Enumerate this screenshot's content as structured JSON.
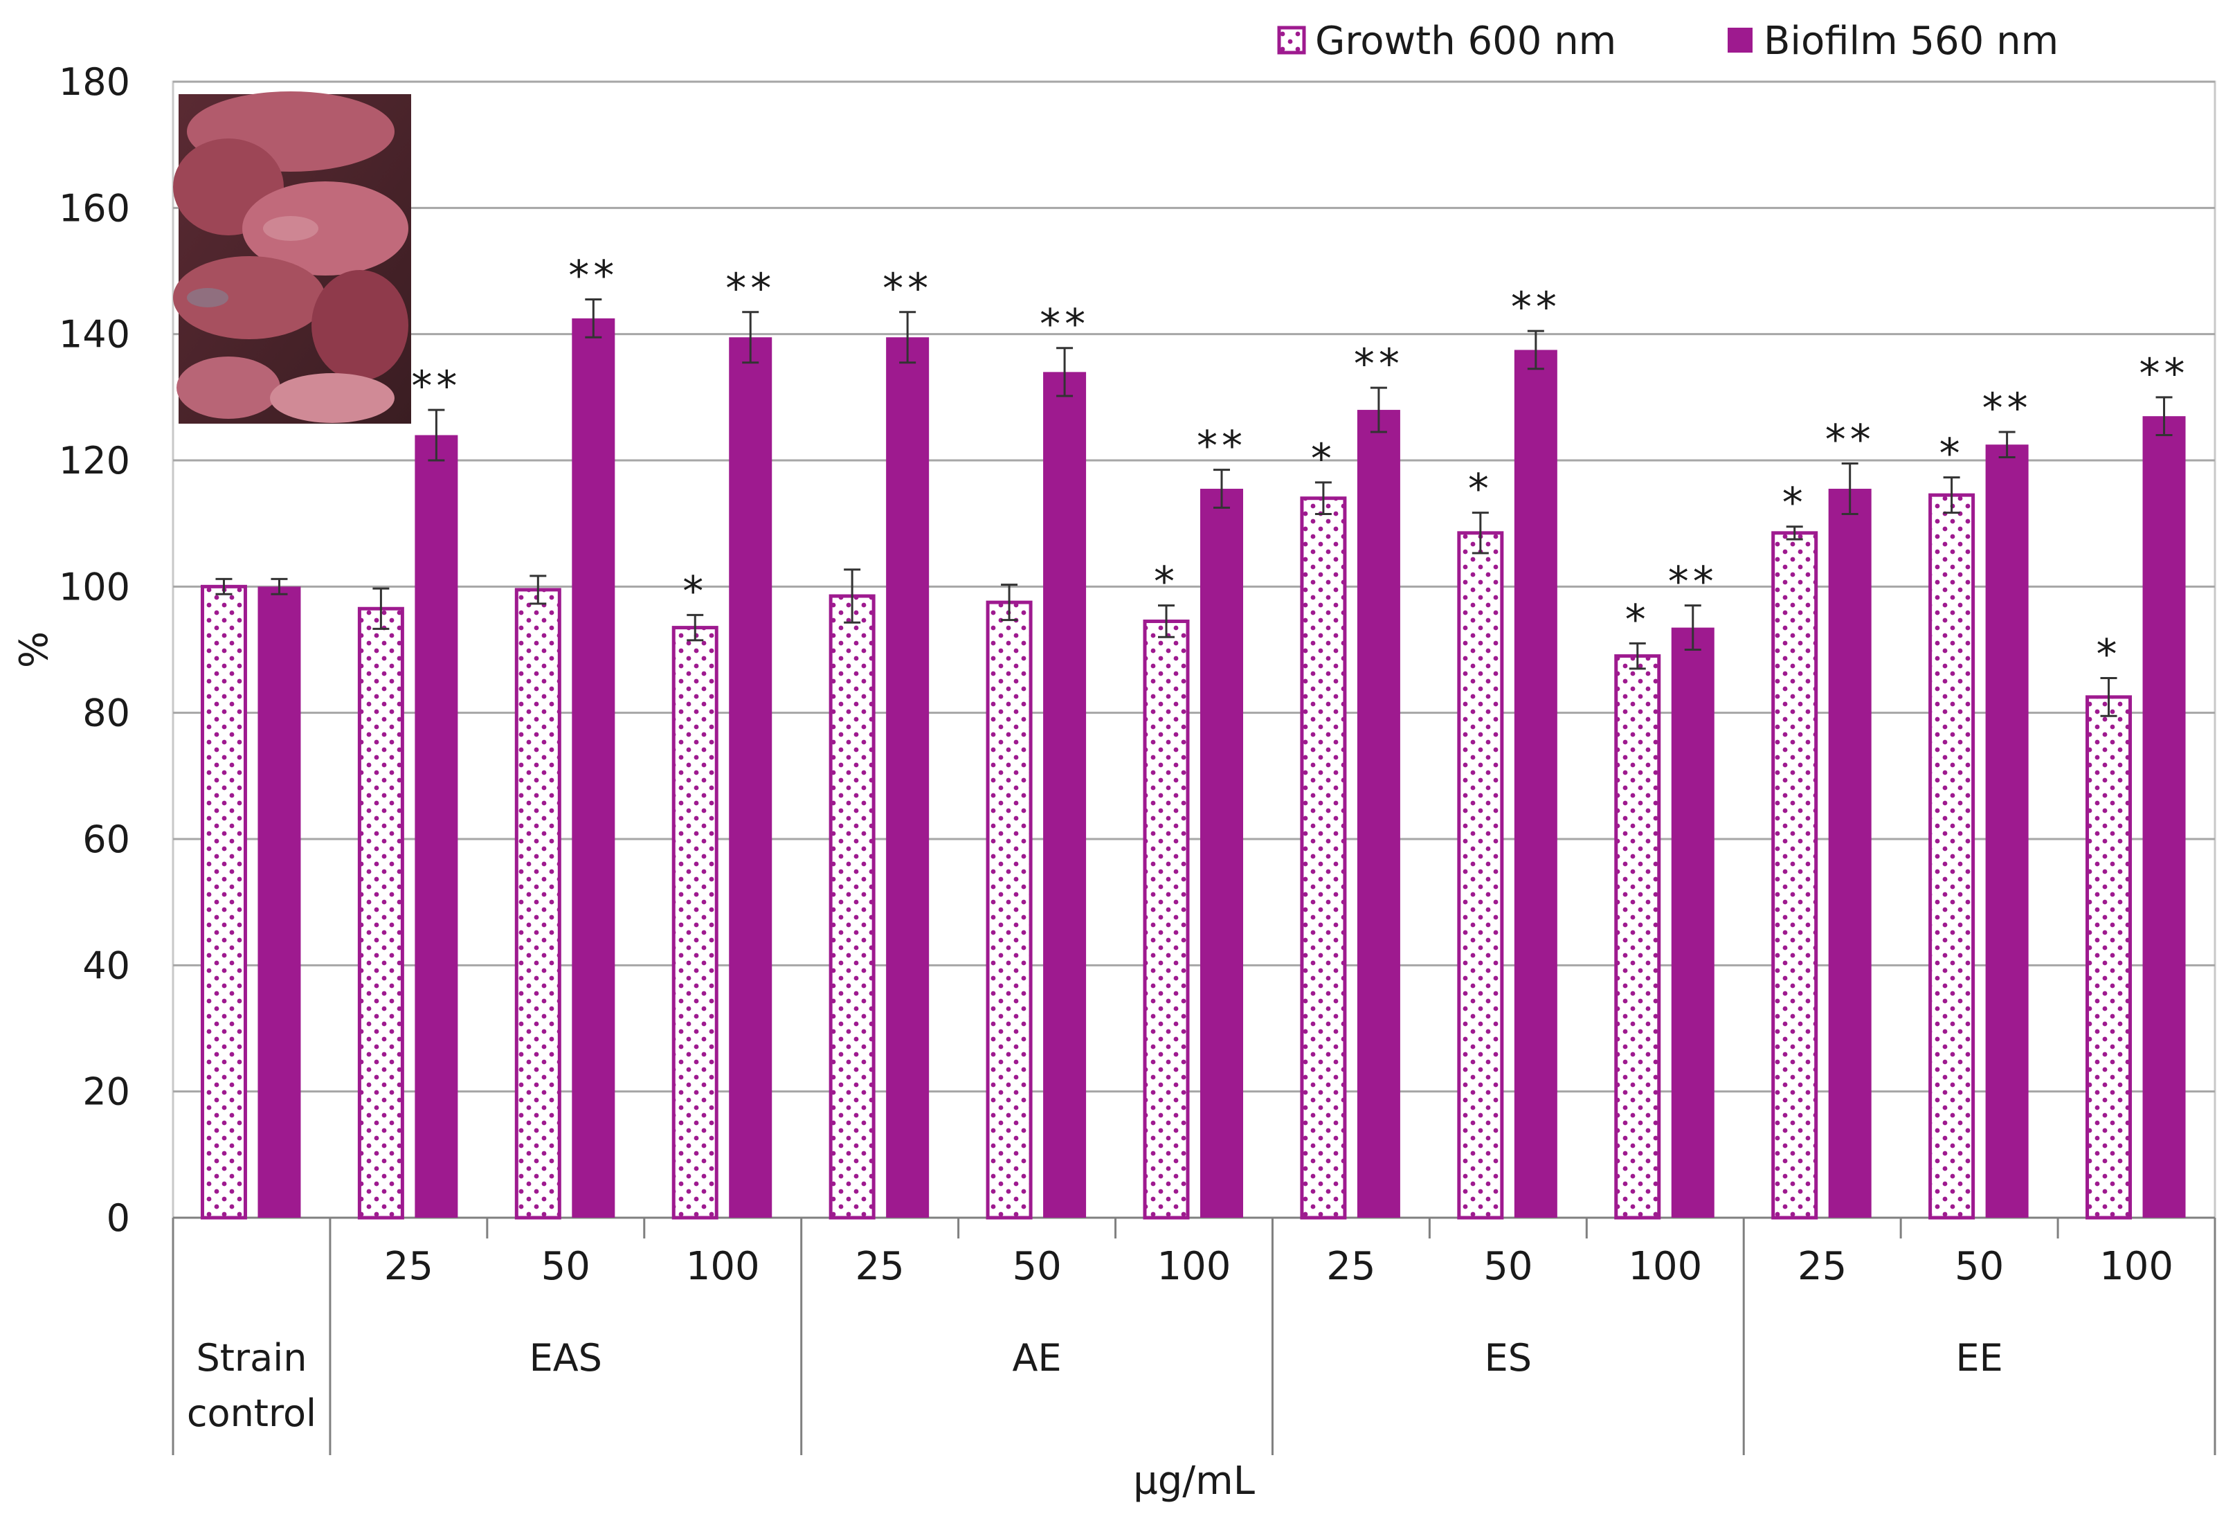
{
  "chart_data": {
    "type": "bar",
    "ylabel": "%",
    "xlabel": "µg/mL",
    "ylim": [
      0,
      180
    ],
    "yticks": [
      0,
      20,
      40,
      60,
      80,
      100,
      120,
      140,
      160,
      180
    ],
    "grid": true,
    "legend_position": "top-right",
    "inset_image": "tubers photo",
    "colors": {
      "bar": "#9e1a8f",
      "pattern_dot": "#9e1a8f",
      "pattern_bg": "#ffffff",
      "grid": "#a6a6a6",
      "axis": "#808080"
    },
    "groups": [
      {
        "label": "Strain control",
        "label_lines": [
          "Strain",
          "control"
        ],
        "concentrations": [
          ""
        ]
      },
      {
        "label": "EAS",
        "concentrations": [
          "25",
          "50",
          "100"
        ]
      },
      {
        "label": "AE",
        "concentrations": [
          "25",
          "50",
          "100"
        ]
      },
      {
        "label": "ES",
        "concentrations": [
          "25",
          "50",
          "100"
        ]
      },
      {
        "label": "EE",
        "concentrations": [
          "25",
          "50",
          "100"
        ]
      }
    ],
    "series": [
      {
        "name": "Growth 600 nm",
        "pattern": "dotted",
        "values": [
          100,
          96.5,
          99.5,
          93.5,
          98.5,
          97.5,
          94.5,
          114,
          108.5,
          89,
          108.5,
          114.5,
          82.5
        ],
        "errors": [
          1.2,
          3.2,
          2.2,
          2.0,
          4.2,
          2.8,
          2.5,
          2.5,
          3.2,
          2.0,
          1.0,
          2.8,
          3.0
        ],
        "significance": [
          "",
          "",
          "",
          "*",
          "",
          "",
          "*",
          "*",
          "*",
          "*",
          "*",
          "*",
          "*"
        ]
      },
      {
        "name": "Biofilm 560 nm",
        "pattern": "solid",
        "values": [
          100,
          124,
          142.5,
          139.5,
          139.5,
          134,
          115.5,
          128,
          137.5,
          93.5,
          115.5,
          122.5,
          127
        ],
        "errors": [
          1.2,
          4.0,
          3.0,
          4.0,
          4.0,
          3.8,
          3.0,
          3.5,
          3.0,
          3.5,
          4.0,
          2.0,
          3.0
        ],
        "significance": [
          "",
          "**",
          "**",
          "**",
          "**",
          "**",
          "**",
          "**",
          "**",
          "**",
          "**",
          "**",
          "**"
        ]
      }
    ]
  }
}
